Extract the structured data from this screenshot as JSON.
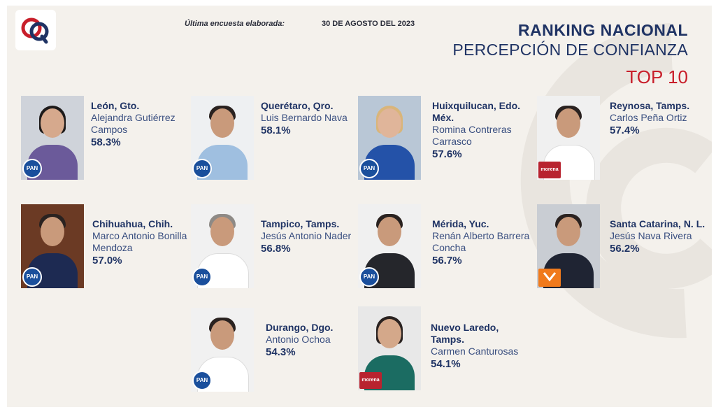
{
  "header": {
    "survey_label": "Última encuesta elaborada:",
    "survey_date": "30 DE AGOSTO DEL 2023",
    "title": "RANKING NACIONAL",
    "subtitle": "PERCEPCIÓN DE CONFIANZA",
    "top": "TOP 10"
  },
  "colors": {
    "navy": "#1f3364",
    "red": "#c81e2a",
    "pan_blue": "#1a4f9c",
    "morena": "#b8232f",
    "mc_orange": "#f07a1c"
  },
  "rankings": [
    {
      "city": "León, Gto.",
      "name": "Alejandra Gutiérrez Campos",
      "pct": "58.3%",
      "party": "PAN"
    },
    {
      "city": "Querétaro, Qro.",
      "name": "Luis Bernardo Nava",
      "pct": "58.1%",
      "party": "PAN"
    },
    {
      "city": "Huixquilucan, Edo. Méx.",
      "name": "Romina Contreras Carrasco",
      "pct": "57.6%",
      "party": "PAN"
    },
    {
      "city": "Reynosa, Tamps.",
      "name": "Carlos Peña Ortiz",
      "pct": "57.4%",
      "party": "morena"
    },
    {
      "city": "Chihuahua, Chih.",
      "name": "Marco Antonio Bonilla Mendoza",
      "pct": "57.0%",
      "party": "PAN"
    },
    {
      "city": "Tampico, Tamps.",
      "name": "Jesús Antonio Nader",
      "pct": "56.8%",
      "party": "PAN"
    },
    {
      "city": "Mérida, Yuc.",
      "name": "Renán Alberto Barrera Concha",
      "pct": "56.7%",
      "party": "PAN"
    },
    {
      "city": "Santa Catarina, N. L.",
      "name": "Jesús Nava Rivera",
      "pct": "56.2%",
      "party": "MC"
    },
    {
      "city": "Durango, Dgo.",
      "name": "Antonio Ochoa",
      "pct": "54.3%",
      "party": "PAN"
    },
    {
      "city": "Nuevo Laredo, Tamps.",
      "name": "Carmen Canturosas",
      "pct": "54.1%",
      "party": "morena"
    }
  ]
}
